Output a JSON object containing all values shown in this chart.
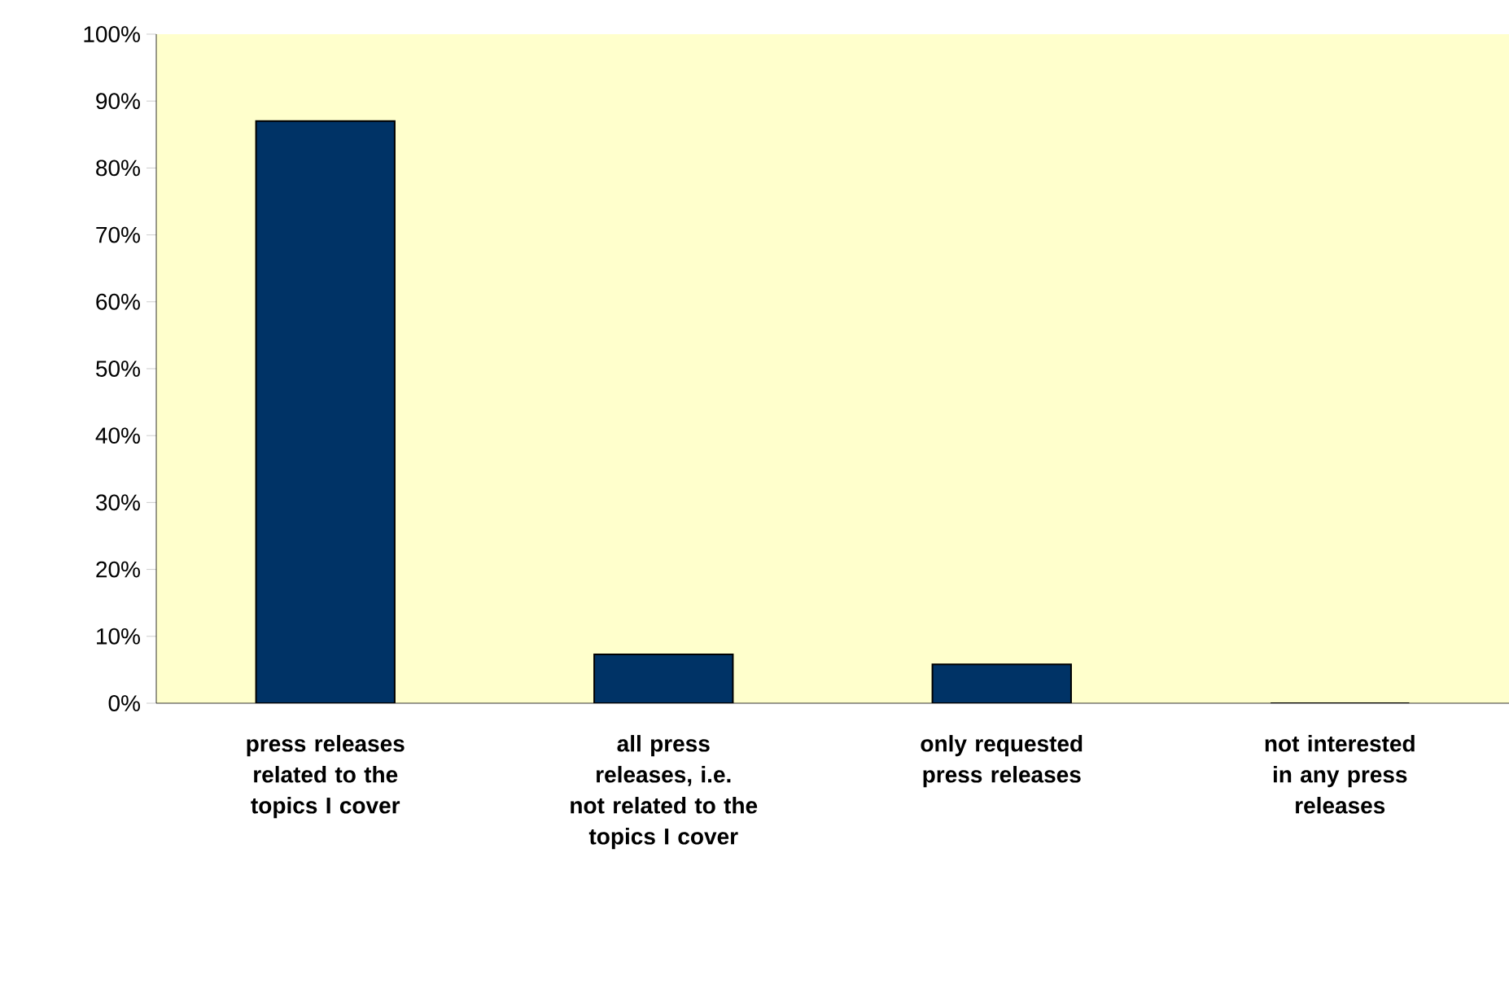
{
  "chart_data": {
    "type": "bar",
    "categories": [
      "press releases related to the topics I cover",
      "all press releases, i.e. not related to the topics I cover",
      "only requested press releases",
      "not interested in any press releases"
    ],
    "values": [
      87,
      7.3,
      5.8,
      0
    ],
    "color": "#003366",
    "ylim": [
      0,
      100
    ],
    "yticks": [
      {
        "value": 0,
        "label": "0%"
      },
      {
        "value": 10,
        "label": "10%"
      },
      {
        "value": 20,
        "label": "20%"
      },
      {
        "value": 30,
        "label": "30%"
      },
      {
        "value": 40,
        "label": "40%"
      },
      {
        "value": 50,
        "label": "50%"
      },
      {
        "value": 60,
        "label": "60%"
      },
      {
        "value": 70,
        "label": "70%"
      },
      {
        "value": 80,
        "label": "80%"
      },
      {
        "value": 90,
        "label": "90%"
      },
      {
        "value": 100,
        "label": "100%"
      }
    ],
    "grid": false
  }
}
